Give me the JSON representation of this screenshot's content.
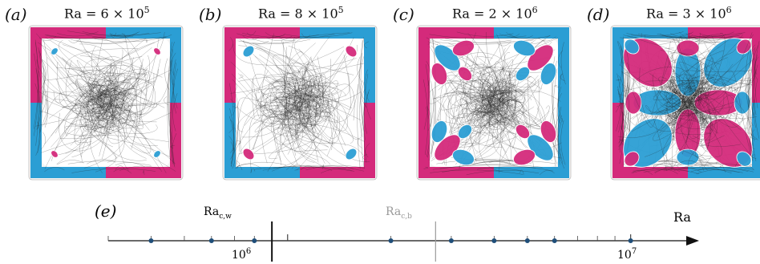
{
  "panels": [
    {
      "label": "(a)",
      "ra_prefix": "Ra = 6 × 10",
      "ra_exp": "5",
      "regime": "weak"
    },
    {
      "label": "(b)",
      "ra_prefix": "Ra = 8 × 10",
      "ra_exp": "5",
      "regime": "weak2"
    },
    {
      "label": "(c)",
      "ra_prefix": "Ra = 2 × 10",
      "ra_exp": "6",
      "regime": "strong"
    },
    {
      "label": "(d)",
      "ra_prefix": "Ra = 3 × 10",
      "ra_exp": "6",
      "regime": "full"
    }
  ],
  "colors": {
    "magenta": "#d42a7b",
    "cyan": "#2b9ed4",
    "streamline": "#222222",
    "axis": "#111111",
    "marker": "#1f4e79",
    "threshold_b": "#9a9a9a"
  },
  "axis": {
    "label": "(e)",
    "ra_label": "Ra",
    "threshold_w": {
      "base": "Ra",
      "sub": "c,w"
    },
    "threshold_b": {
      "base": "Ra",
      "sub": "c,b"
    },
    "tick_1e6": {
      "base": "10",
      "exp": "6"
    },
    "tick_1e7": {
      "base": "10",
      "exp": "7"
    }
  },
  "chart_data": {
    "type": "scatter",
    "xscale": "log",
    "x": [
      400000,
      600000,
      800000,
      2000000,
      3000000,
      4000000,
      5000000,
      6000000,
      10000000
    ],
    "thresholds": [
      {
        "name": "Ra_c,w",
        "x": 900000
      },
      {
        "name": "Ra_c,b",
        "x": 2700000
      }
    ],
    "xlim": [
      300000,
      15000000
    ]
  }
}
